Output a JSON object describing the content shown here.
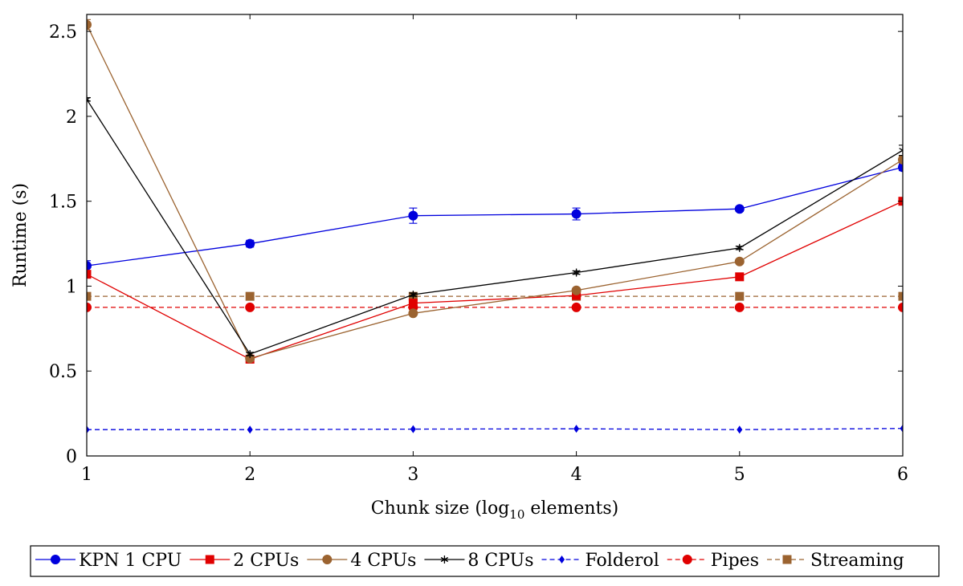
{
  "chart_data": {
    "type": "line",
    "xlabel": "Chunk size (log10 elements)",
    "xlabel_parts": {
      "before": "Chunk size (log",
      "subscript": "10",
      "after": " elements)"
    },
    "ylabel": "Runtime (s)",
    "xlim": [
      1,
      6
    ],
    "ylim": [
      0,
      2.6
    ],
    "xticks": [
      1,
      2,
      3,
      4,
      5,
      6
    ],
    "yticks": [
      0,
      0.5,
      1,
      1.5,
      2,
      2.5
    ],
    "ytick_labels": [
      "0",
      "0.5",
      "1",
      "1.5",
      "2",
      "2.5"
    ],
    "grid": false,
    "legend_position": "bottom-center",
    "x": [
      1,
      2,
      3,
      4,
      5,
      6
    ],
    "series": [
      {
        "name": "KPN 1 CPU",
        "color": "#0000dd",
        "marker": "circle",
        "dash": false,
        "values": [
          1.12,
          1.25,
          1.415,
          1.425,
          1.455,
          1.7
        ],
        "errors": [
          0.03,
          0.02,
          0.045,
          0.035,
          0.015,
          0.02
        ]
      },
      {
        "name": "2 CPUs",
        "color": "#e00000",
        "marker": "square",
        "dash": false,
        "values": [
          1.07,
          0.57,
          0.9,
          0.945,
          1.055,
          1.5
        ],
        "errors": [
          0.02,
          0.01,
          0.01,
          0.01,
          0.01,
          0.01
        ]
      },
      {
        "name": "4 CPUs",
        "color": "#9b6330",
        "marker": "circle",
        "dash": false,
        "values": [
          2.54,
          0.575,
          0.84,
          0.975,
          1.145,
          1.745
        ],
        "errors": [
          0.03,
          0.01,
          0.01,
          0.01,
          0.01,
          0.02
        ]
      },
      {
        "name": "8 CPUs",
        "color": "#000000",
        "marker": "star",
        "dash": false,
        "values": [
          2.1,
          0.6,
          0.95,
          1.08,
          1.225,
          1.8
        ],
        "errors": [
          0.01,
          0.01,
          0.01,
          0.01,
          0.01,
          0.03
        ]
      },
      {
        "name": "Folderol",
        "color": "#0000dd",
        "marker": "diamond",
        "dash": true,
        "values": [
          0.155,
          0.155,
          0.158,
          0.16,
          0.155,
          0.162
        ],
        "errors": [
          0,
          0,
          0,
          0,
          0,
          0
        ]
      },
      {
        "name": "Pipes",
        "color": "#e00000",
        "marker": "circle",
        "dash": true,
        "values": [
          0.875,
          0.875,
          0.875,
          0.875,
          0.875,
          0.875
        ],
        "errors": [
          0,
          0,
          0,
          0,
          0,
          0
        ]
      },
      {
        "name": "Streaming",
        "color": "#9b6330",
        "marker": "square",
        "dash": true,
        "values": [
          0.94,
          0.94,
          0.94,
          0.94,
          0.94,
          0.94
        ],
        "errors": [
          0,
          0,
          0,
          0,
          0,
          0
        ]
      }
    ]
  }
}
